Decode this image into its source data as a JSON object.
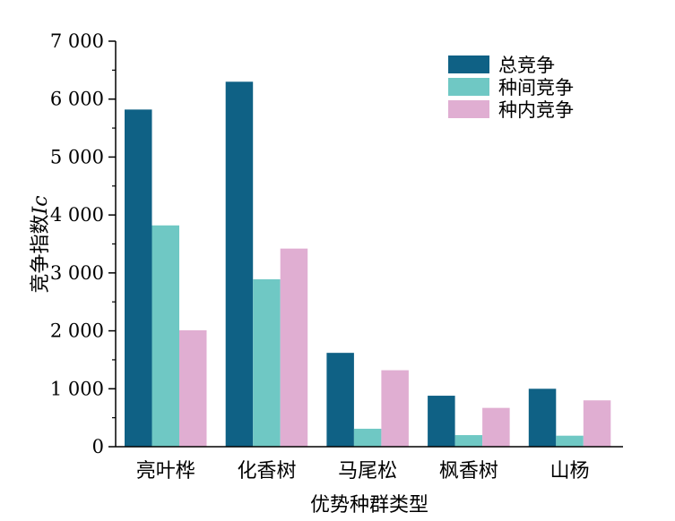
{
  "chart_data": {
    "type": "bar",
    "title": "",
    "xlabel": "优势种群类型",
    "ylabel": "竞争指数",
    "ylabel_italic": "Ic",
    "ylim": [
      0,
      7000
    ],
    "yticks": [
      0,
      1000,
      2000,
      3000,
      4000,
      5000,
      6000,
      7000
    ],
    "ytick_labels": [
      "0",
      "1 000",
      "2 000",
      "3 000",
      "4 000",
      "5 000",
      "6 000",
      "7 000"
    ],
    "categories": [
      "亮叶桦",
      "化香树",
      "马尾松",
      "枫香树",
      "山杨"
    ],
    "series": [
      {
        "name": "总竞争",
        "color": "#0f6185",
        "values": [
          5820,
          6300,
          1620,
          880,
          1000
        ]
      },
      {
        "name": "种间竞争",
        "color": "#6fc8c4",
        "values": [
          3820,
          2890,
          310,
          200,
          190
        ]
      },
      {
        "name": "种内竞争",
        "color": "#e0aed2",
        "values": [
          2010,
          3420,
          1320,
          670,
          800
        ]
      }
    ],
    "legend": "top-right",
    "grid": false
  }
}
